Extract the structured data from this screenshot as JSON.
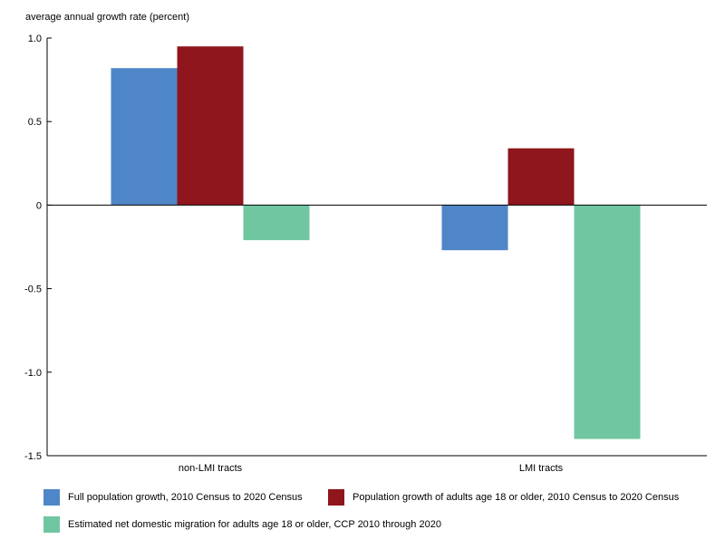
{
  "chart_data": {
    "type": "bar",
    "title": "",
    "ylabel": "average annual growth rate (percent)",
    "xlabel": "",
    "categories": [
      "non-LMI tracts",
      "LMI tracts"
    ],
    "ylim": [
      -1.5,
      1.0
    ],
    "yticks": [
      1.0,
      0.5,
      0,
      -0.5,
      -1.0,
      -1.5
    ],
    "ytick_labels": [
      "1.0",
      "0.5",
      "0",
      "-0.5",
      "-1.0",
      "-1.5"
    ],
    "grid": false,
    "legend_position": "bottom",
    "series": [
      {
        "name": "Full population growth, 2010 Census to 2020 Census",
        "color": "#4E86C8",
        "values": [
          0.82,
          -0.27
        ]
      },
      {
        "name": "Population growth of adults age 18 or older, 2010 Census to 2020 Census",
        "color": "#8E161C",
        "values": [
          0.95,
          0.34
        ]
      },
      {
        "name": "Estimated net domestic migration for adults age 18 or older, CCP 2010 through 2020",
        "color": "#6FC6A0",
        "values": [
          -0.21,
          -1.4
        ]
      }
    ]
  }
}
